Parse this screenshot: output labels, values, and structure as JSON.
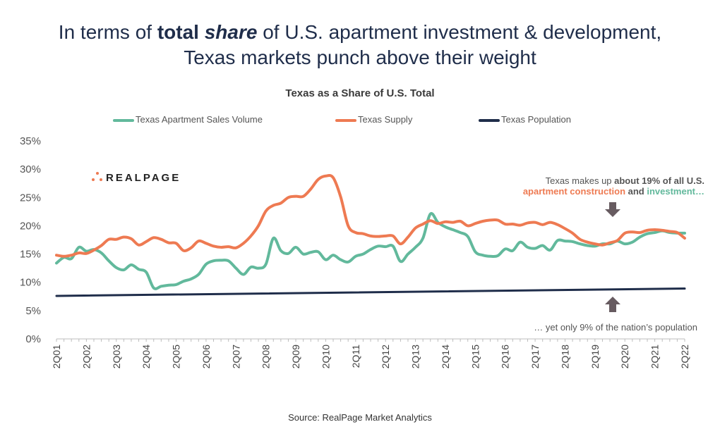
{
  "headline": {
    "part1": "In terms of ",
    "bold1": "total",
    "space": " ",
    "bold_italic": "share",
    "part2": " of U.S. apartment investment & development,",
    "line2": "Texas markets punch above their weight"
  },
  "logo_text": "REALPAGE",
  "annotation_top": {
    "line1_pre": "Texas makes up ",
    "line1_bold": "about 19% of all U.S.",
    "line2_orange": "apartment construction",
    "line2_dark": " and ",
    "line2_green": "investment…"
  },
  "annotation_bottom": "… yet only 9% of the nation’s population",
  "source": "Source: RealPage Market Analytics",
  "colors": {
    "sales": "#62b99c",
    "supply": "#ee7a52",
    "population": "#1f2d4a",
    "arrow": "#675b60"
  },
  "chart_data": {
    "type": "line",
    "title": "Texas as a Share of U.S. Total",
    "xlabel": "",
    "ylabel": "",
    "ylim": [
      0,
      35
    ],
    "yticks": [
      "0%",
      "5%",
      "10%",
      "15%",
      "20%",
      "25%",
      "30%",
      "35%"
    ],
    "x_tick_labels": [
      "2Q01",
      "2Q02",
      "2Q03",
      "2Q04",
      "2Q05",
      "2Q06",
      "2Q07",
      "2Q08",
      "2Q09",
      "2Q10",
      "2Q11",
      "2Q12",
      "2Q13",
      "2Q14",
      "2Q15",
      "2Q16",
      "2Q17",
      "2Q18",
      "2Q19",
      "2Q20",
      "2Q21",
      "2Q22"
    ],
    "grid": false,
    "legend": "top",
    "series": [
      {
        "name": "Texas Apartment Sales Volume",
        "x": [
          2001.25,
          2001.5,
          2001.75,
          2002.0,
          2002.25,
          2002.5,
          2002.75,
          2003.0,
          2003.25,
          2003.5,
          2003.75,
          2004.0,
          2004.25,
          2004.5,
          2004.75,
          2005.0,
          2005.25,
          2005.5,
          2005.75,
          2006.0,
          2006.25,
          2006.5,
          2006.75,
          2007.0,
          2007.25,
          2007.5,
          2007.75,
          2008.0,
          2008.25,
          2008.5,
          2008.75,
          2009.0,
          2009.25,
          2009.5,
          2009.75,
          2010.0,
          2010.25,
          2010.5,
          2010.75,
          2011.0,
          2011.25,
          2011.5,
          2011.75,
          2012.0,
          2012.25,
          2012.5,
          2012.75,
          2013.0,
          2013.25,
          2013.5,
          2013.75,
          2014.0,
          2014.25,
          2014.5,
          2014.75,
          2015.0,
          2015.25,
          2015.5,
          2015.75,
          2016.0,
          2016.25,
          2016.5,
          2016.75,
          2017.0,
          2017.25,
          2017.5,
          2017.75,
          2018.0,
          2018.25,
          2018.5,
          2018.75,
          2019.0,
          2019.25,
          2019.5,
          2019.75,
          2020.0,
          2020.25,
          2020.5,
          2020.75,
          2021.0,
          2021.25,
          2021.5,
          2021.75,
          2022.0,
          2022.25
        ],
        "values": [
          13.4,
          14.4,
          14.2,
          16.2,
          15.5,
          15.8,
          15.2,
          13.8,
          12.6,
          12.2,
          13.1,
          12.3,
          11.8,
          9.0,
          9.3,
          9.5,
          9.6,
          10.2,
          10.6,
          11.4,
          13.2,
          13.8,
          13.9,
          13.8,
          12.5,
          11.4,
          12.7,
          12.5,
          13.2,
          17.8,
          15.6,
          15.1,
          16.2,
          15.0,
          15.3,
          15.4,
          14.0,
          14.8,
          14.0,
          13.6,
          14.6,
          15.0,
          15.8,
          16.4,
          16.3,
          16.4,
          13.7,
          15.0,
          16.2,
          17.8,
          22.1,
          20.6,
          19.8,
          19.3,
          18.8,
          18.1,
          15.4,
          14.8,
          14.6,
          14.7,
          15.9,
          15.6,
          17.1,
          16.2,
          16.0,
          16.5,
          15.7,
          17.4,
          17.3,
          17.2,
          16.8,
          16.5,
          16.4,
          16.8,
          16.8,
          17.3,
          16.8,
          17.1,
          18.0,
          18.6,
          18.8,
          19.1,
          18.8,
          18.7,
          18.7
        ]
      },
      {
        "name": "Texas Supply",
        "x": [
          2001.25,
          2001.5,
          2001.75,
          2002.0,
          2002.25,
          2002.5,
          2002.75,
          2003.0,
          2003.25,
          2003.5,
          2003.75,
          2004.0,
          2004.25,
          2004.5,
          2004.75,
          2005.0,
          2005.25,
          2005.5,
          2005.75,
          2006.0,
          2006.25,
          2006.5,
          2006.75,
          2007.0,
          2007.25,
          2007.5,
          2007.75,
          2008.0,
          2008.25,
          2008.5,
          2008.75,
          2009.0,
          2009.25,
          2009.5,
          2009.75,
          2010.0,
          2010.25,
          2010.5,
          2010.75,
          2011.0,
          2011.25,
          2011.5,
          2011.75,
          2012.0,
          2012.25,
          2012.5,
          2012.75,
          2013.0,
          2013.25,
          2013.5,
          2013.75,
          2014.0,
          2014.25,
          2014.5,
          2014.75,
          2015.0,
          2015.25,
          2015.5,
          2015.75,
          2016.0,
          2016.25,
          2016.5,
          2016.75,
          2017.0,
          2017.25,
          2017.5,
          2017.75,
          2018.0,
          2018.25,
          2018.5,
          2018.75,
          2019.0,
          2019.25,
          2019.5,
          2019.75,
          2020.0,
          2020.25,
          2020.5,
          2020.75,
          2021.0,
          2021.25,
          2021.5,
          2021.75,
          2022.0,
          2022.25
        ],
        "values": [
          14.8,
          14.6,
          14.8,
          15.2,
          15.1,
          15.7,
          16.5,
          17.6,
          17.6,
          18.0,
          17.7,
          16.6,
          17.2,
          17.9,
          17.6,
          17.0,
          16.9,
          15.6,
          16.1,
          17.3,
          16.9,
          16.4,
          16.2,
          16.3,
          16.1,
          16.9,
          18.2,
          20.0,
          22.6,
          23.6,
          24.0,
          25.0,
          25.2,
          25.2,
          26.5,
          28.2,
          28.8,
          28.5,
          25.1,
          20.0,
          18.8,
          18.6,
          18.2,
          18.1,
          18.2,
          18.2,
          16.8,
          18.0,
          19.6,
          20.3,
          20.9,
          20.4,
          20.7,
          20.6,
          20.8,
          20.0,
          20.4,
          20.8,
          21.0,
          21.0,
          20.3,
          20.3,
          20.1,
          20.5,
          20.6,
          20.2,
          20.6,
          20.2,
          19.5,
          18.7,
          17.6,
          17.1,
          16.8,
          16.6,
          17.0,
          17.4,
          18.7,
          18.9,
          18.8,
          19.2,
          19.3,
          19.2,
          19.0,
          18.8,
          17.8
        ]
      },
      {
        "name": "Texas Population",
        "x": [
          2001.25,
          2022.25
        ],
        "values": [
          7.6,
          8.9
        ]
      }
    ]
  }
}
